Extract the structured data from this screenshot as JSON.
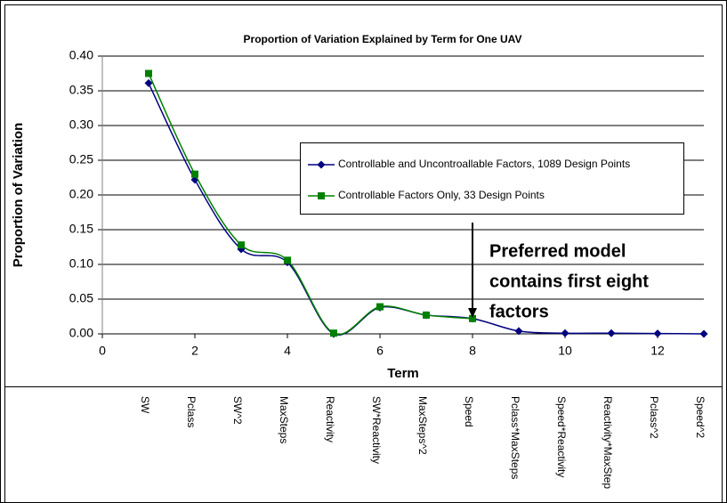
{
  "chart_data": {
    "type": "line",
    "title": "Proportion of Variation Explained by Term for One UAV",
    "x_label": "Term",
    "y_label": "Proportion of Variation",
    "x": [
      1,
      2,
      3,
      4,
      5,
      6,
      7,
      8,
      9,
      10,
      11,
      12,
      13
    ],
    "series": [
      {
        "name": "Controllable and Uncontroallable Factors, 1089 Design Points",
        "color": "#000080",
        "marker": "diamond",
        "values": [
          0.361,
          0.222,
          0.122,
          0.103,
          0.0,
          0.038,
          0.027,
          0.022,
          0.004,
          0.001,
          0.001,
          0.0005,
          0.0
        ]
      },
      {
        "name": "Controllable Factors Only, 33 Design Points",
        "color": "#008000",
        "marker": "square",
        "values": [
          0.375,
          0.23,
          0.128,
          0.106,
          0.001,
          0.039,
          0.027,
          0.022,
          null,
          null,
          null,
          null,
          null
        ]
      }
    ],
    "xlim": [
      0,
      13
    ],
    "ylim": [
      0,
      0.4
    ],
    "xticks": [
      0,
      2,
      4,
      6,
      8,
      10,
      12
    ],
    "yticks": [
      {
        "value": 0,
        "label": "0.00"
      },
      {
        "value": 0.05,
        "label": "0.05"
      },
      {
        "value": 0.1,
        "label": "0.10"
      },
      {
        "value": 0.15,
        "label": "0.15"
      },
      {
        "value": 0.2,
        "label": "0.20"
      },
      {
        "value": 0.25,
        "label": "0.25"
      },
      {
        "value": 0.3,
        "label": "0.30"
      },
      {
        "value": 0.35,
        "label": "0.35"
      },
      {
        "value": 0.4,
        "label": "0.40"
      }
    ],
    "grid": true,
    "annotation": {
      "lines": [
        "Preferred model",
        "contains first eight",
        "factors"
      ],
      "x": 8
    },
    "term_labels": [
      "SW",
      "Pclass",
      "SW^2",
      "MaxSteps",
      "Reactivity",
      "SW*Reactivity",
      "MaxSteps^2",
      "Speed",
      "Pclass*MaxSteps",
      "Speed*Reactivity",
      "Reactivity*MaxStep",
      "Pclass^2",
      "Speed^2"
    ]
  }
}
